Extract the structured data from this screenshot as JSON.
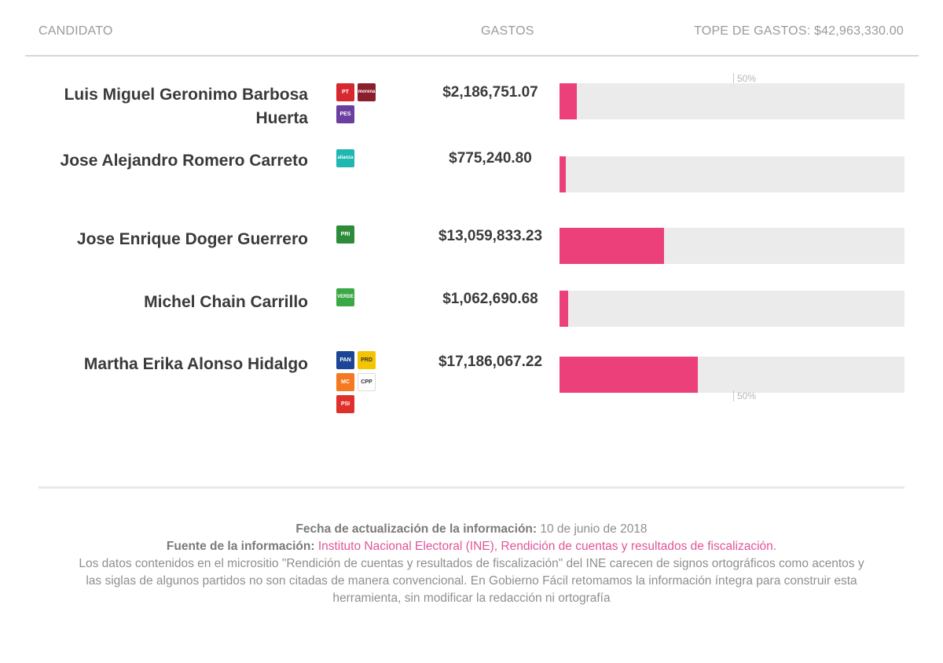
{
  "header": {
    "candidate_label": "CANDIDATO",
    "expense_label": "GASTOS",
    "cap_label": "TOPE DE GASTOS: $42,963,330.00"
  },
  "chart_data": {
    "type": "bar",
    "orientation": "horizontal",
    "xlim": [
      0,
      42963330
    ],
    "reference_marker": {
      "label": "50%",
      "value": 21481665
    },
    "categories": [
      "Luis Miguel Geronimo Barbosa Huerta",
      "Jose Alejandro Romero Carreto",
      "Jose Enrique Doger Guerrero",
      "Michel Chain Carrillo",
      "Martha Erika Alonso Hidalgo"
    ],
    "values": [
      2186751.07,
      775240.8,
      13059833.23,
      1062690.68,
      17186067.22
    ],
    "value_labels": [
      "$2,186,751.07",
      "$775,240.80",
      "$13,059,833.23",
      "$1,062,690.68",
      "$17,186,067.22"
    ],
    "bar_color": "#ec407a",
    "track_color": "#ebebeb"
  },
  "candidates": [
    {
      "name": "Luis Miguel Geronimo Barbosa Huerta",
      "amount": "$2,186,751.07",
      "parties": [
        {
          "icon": "pt-logo",
          "label": "PT",
          "color": "#d7282f"
        },
        {
          "icon": "morena-logo",
          "label": "morena",
          "color": "#8b1e2d"
        },
        {
          "icon": "encuentro-social-logo",
          "label": "PES",
          "color": "#6a3fa0"
        }
      ]
    },
    {
      "name": "Jose Alejandro Romero Carreto",
      "amount": "$775,240.80",
      "parties": [
        {
          "icon": "nueva-alianza-logo",
          "label": "alianza",
          "color": "#1fb7b1"
        }
      ]
    },
    {
      "name": "Jose Enrique Doger Guerrero",
      "amount": "$13,059,833.23",
      "parties": [
        {
          "icon": "pri-logo",
          "label": "PRI",
          "color": "#2e8b3a"
        }
      ]
    },
    {
      "name": "Michel Chain Carrillo",
      "amount": "$1,062,690.68",
      "parties": [
        {
          "icon": "verde-logo",
          "label": "VERDE",
          "color": "#3aa845"
        }
      ]
    },
    {
      "name": "Martha Erika Alonso Hidalgo",
      "amount": "$17,186,067.22",
      "parties": [
        {
          "icon": "pan-logo",
          "label": "PAN",
          "color": "#1c4595"
        },
        {
          "icon": "prd-logo",
          "label": "PRD",
          "color": "#f5c400"
        },
        {
          "icon": "movimiento-ciudadano-logo",
          "label": "MC",
          "color": "#f47920"
        },
        {
          "icon": "compromiso-por-puebla-logo",
          "label": "CPP",
          "color": "#ffffff"
        },
        {
          "icon": "psi-logo",
          "label": "PSI",
          "color": "#e0302b"
        }
      ]
    }
  ],
  "footer": {
    "update_label": "Fecha de actualización de la información:",
    "update_value": "10 de junio de 2018",
    "source_label": "Fuente de la información:",
    "source_link": "Instituto Nacional Electoral (INE), Rendición de cuentas y resultados de fiscalización.",
    "note": "Los datos contenidos en el micrositio \"Rendición de cuentas y resultados de fiscalización\" del INE carecen de signos ortográficos como acentos y las siglas de algunos partidos no son citadas de manera convencional. En Gobierno Fácil retomamos la información íntegra para construir esta herramienta, sin modificar la redacción ni ortografía"
  }
}
